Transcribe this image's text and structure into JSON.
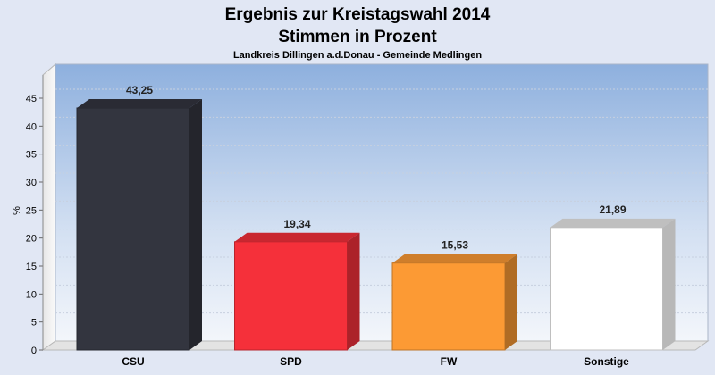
{
  "chart_data": {
    "type": "bar",
    "title": "Ergebnis zur Kreistagswahl 2014",
    "subtitle": "Stimmen in Prozent",
    "caption": "Landkreis Dillingen a.d.Donau - Gemeinde Medlingen",
    "ylabel": "%",
    "ylim": [
      0,
      45
    ],
    "yticks": [
      "0",
      "5",
      "10",
      "15",
      "20",
      "25",
      "30",
      "35",
      "40",
      "45"
    ],
    "categories": [
      "CSU",
      "SPD",
      "FW",
      "Sonstige"
    ],
    "values": [
      43.25,
      19.34,
      15.53,
      21.89
    ],
    "value_labels": [
      "43,25",
      "19,34",
      "15,53",
      "21,89"
    ],
    "colors": [
      "#33353f",
      "#f5303a",
      "#fc9a34",
      "#ffffff"
    ],
    "grid": true,
    "legend": "none"
  }
}
